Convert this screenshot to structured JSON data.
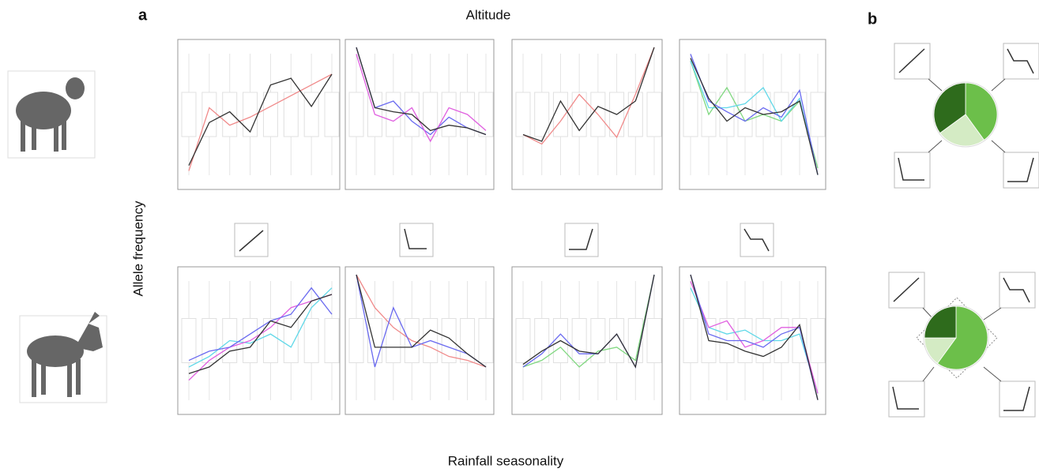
{
  "header": {
    "label_a": "a",
    "title_top": "Altitude",
    "y_label": "Allele frequency",
    "title_bottom": "Rainfall seasonality",
    "label_b": "b"
  },
  "panels": {
    "ylim": [
      0,
      1
    ],
    "plots": [
      {
        "lines": [
          {
            "color": "#f08a8a",
            "values": [
              0.08,
              0.55,
              0.42,
              0.48,
              0.56,
              0.64,
              0.72,
              0.8
            ]
          },
          {
            "color": "#333333",
            "values": [
              0.12,
              0.44,
              0.52,
              0.37,
              0.72,
              0.77,
              0.56,
              0.8
            ]
          }
        ]
      },
      {
        "lines": [
          {
            "color": "#6a6af0",
            "values": [
              1.0,
              0.55,
              0.6,
              0.45,
              0.35,
              0.48,
              0.4,
              0.35
            ]
          },
          {
            "color": "#e060e0",
            "values": [
              0.95,
              0.5,
              0.45,
              0.55,
              0.3,
              0.55,
              0.5,
              0.38
            ]
          },
          {
            "color": "#333333",
            "values": [
              1.0,
              0.55,
              0.52,
              0.5,
              0.38,
              0.42,
              0.4,
              0.35
            ]
          }
        ]
      },
      {
        "lines": [
          {
            "color": "#f08a8a",
            "values": [
              0.35,
              0.28,
              0.45,
              0.65,
              0.5,
              0.33,
              0.65,
              1.0
            ]
          },
          {
            "color": "#333333",
            "values": [
              0.35,
              0.3,
              0.6,
              0.38,
              0.56,
              0.5,
              0.6,
              1.0
            ]
          }
        ]
      },
      {
        "lines": [
          {
            "color": "#80d880",
            "values": [
              0.9,
              0.5,
              0.7,
              0.45,
              0.5,
              0.45,
              0.6,
              0.1
            ]
          },
          {
            "color": "#60d8e8",
            "values": [
              0.9,
              0.55,
              0.55,
              0.58,
              0.7,
              0.45,
              0.62,
              0.05
            ]
          },
          {
            "color": "#6a6af0",
            "values": [
              0.95,
              0.6,
              0.52,
              0.45,
              0.55,
              0.48,
              0.68,
              0.05
            ]
          },
          {
            "color": "#333333",
            "values": [
              0.92,
              0.62,
              0.45,
              0.55,
              0.5,
              0.52,
              0.6,
              0.05
            ]
          }
        ]
      },
      {
        "lines": [
          {
            "color": "#60d8e8",
            "values": [
              0.3,
              0.38,
              0.5,
              0.48,
              0.55,
              0.45,
              0.75,
              0.9
            ]
          },
          {
            "color": "#e060e0",
            "values": [
              0.2,
              0.35,
              0.45,
              0.5,
              0.6,
              0.75,
              0.8,
              0.85
            ]
          },
          {
            "color": "#6a6af0",
            "values": [
              0.35,
              0.42,
              0.45,
              0.55,
              0.65,
              0.7,
              0.9,
              0.7
            ]
          },
          {
            "color": "#333333",
            "values": [
              0.25,
              0.3,
              0.42,
              0.45,
              0.65,
              0.6,
              0.8,
              0.85
            ]
          }
        ]
      },
      {
        "lines": [
          {
            "color": "#f08a8a",
            "values": [
              1.0,
              0.75,
              0.6,
              0.5,
              0.45,
              0.38,
              0.35,
              0.3
            ]
          },
          {
            "color": "#6a6af0",
            "values": [
              1.0,
              0.3,
              0.75,
              0.45,
              0.5,
              0.45,
              0.4,
              0.3
            ]
          },
          {
            "color": "#333333",
            "values": [
              1.0,
              0.45,
              0.45,
              0.45,
              0.58,
              0.52,
              0.4,
              0.3
            ]
          }
        ]
      },
      {
        "lines": [
          {
            "color": "#80d880",
            "values": [
              0.3,
              0.35,
              0.45,
              0.3,
              0.42,
              0.45,
              0.35,
              1.0
            ]
          },
          {
            "color": "#6a6af0",
            "values": [
              0.3,
              0.4,
              0.55,
              0.4,
              0.4,
              0.55,
              0.3,
              1.0
            ]
          },
          {
            "color": "#333333",
            "values": [
              0.32,
              0.42,
              0.5,
              0.42,
              0.4,
              0.55,
              0.3,
              1.0
            ]
          }
        ]
      },
      {
        "lines": [
          {
            "color": "#60d8e8",
            "values": [
              0.9,
              0.6,
              0.55,
              0.58,
              0.5,
              0.5,
              0.55,
              0.1
            ]
          },
          {
            "color": "#e060e0",
            "values": [
              0.95,
              0.6,
              0.65,
              0.45,
              0.5,
              0.6,
              0.6,
              0.1
            ]
          },
          {
            "color": "#6a6af0",
            "values": [
              1.0,
              0.55,
              0.5,
              0.5,
              0.45,
              0.55,
              0.6,
              0.05
            ]
          },
          {
            "color": "#333333",
            "values": [
              1.0,
              0.5,
              0.48,
              0.42,
              0.38,
              0.45,
              0.62,
              0.05
            ]
          }
        ]
      }
    ]
  },
  "pies": [
    {
      "values": [
        40,
        25,
        35
      ],
      "colors": [
        "#6cbf4a",
        "#d4ebc4",
        "#2e6b1c"
      ]
    },
    {
      "values": [
        60,
        15,
        25
      ],
      "colors": [
        "#6cbf4a",
        "#d4ebc4",
        "#2e6b1c"
      ]
    }
  ]
}
